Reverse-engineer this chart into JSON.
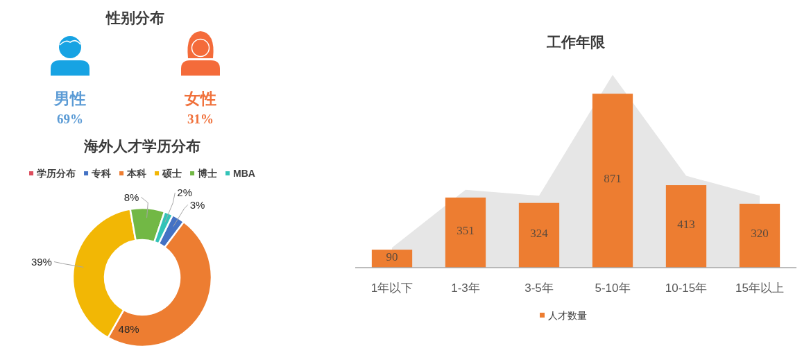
{
  "chart_data": [
    {
      "type": "other",
      "title": "性别分布",
      "annotations": [
        "男性",
        "69%",
        "女性",
        "31%"
      ]
    },
    {
      "type": "donut",
      "title": "海外人才学历分布",
      "categories": [
        "学历分布",
        "专科",
        "本科",
        "硕士",
        "博士",
        "MBA"
      ],
      "values": [
        null,
        3,
        48,
        39,
        8,
        2
      ],
      "value_labels": [
        null,
        "3%",
        "48%",
        "39%",
        "8%",
        "2%"
      ],
      "colors": [
        "#dc4c5c",
        "#4472c4",
        "#ed7d31",
        "#f2b705",
        "#72b845",
        "#33c3b8"
      ],
      "legend": "top"
    },
    {
      "type": "bar",
      "title": "工作年限",
      "categories": [
        "1年以下",
        "1-3年",
        "3-5年",
        "5-10年",
        "10-15年",
        "15年以上"
      ],
      "series": [
        {
          "name": "人才数量",
          "color": "#ed7d31",
          "values": [
            90,
            351,
            324,
            871,
            413,
            320
          ],
          "value_labels": [
            "90",
            "351",
            "324",
            "871",
            "413",
            "320"
          ]
        },
        {
          "type": "area",
          "color": "#e6e6e6",
          "values": [
            100,
            390,
            360,
            965,
            460,
            360
          ]
        }
      ],
      "legend": "bottom"
    }
  ]
}
